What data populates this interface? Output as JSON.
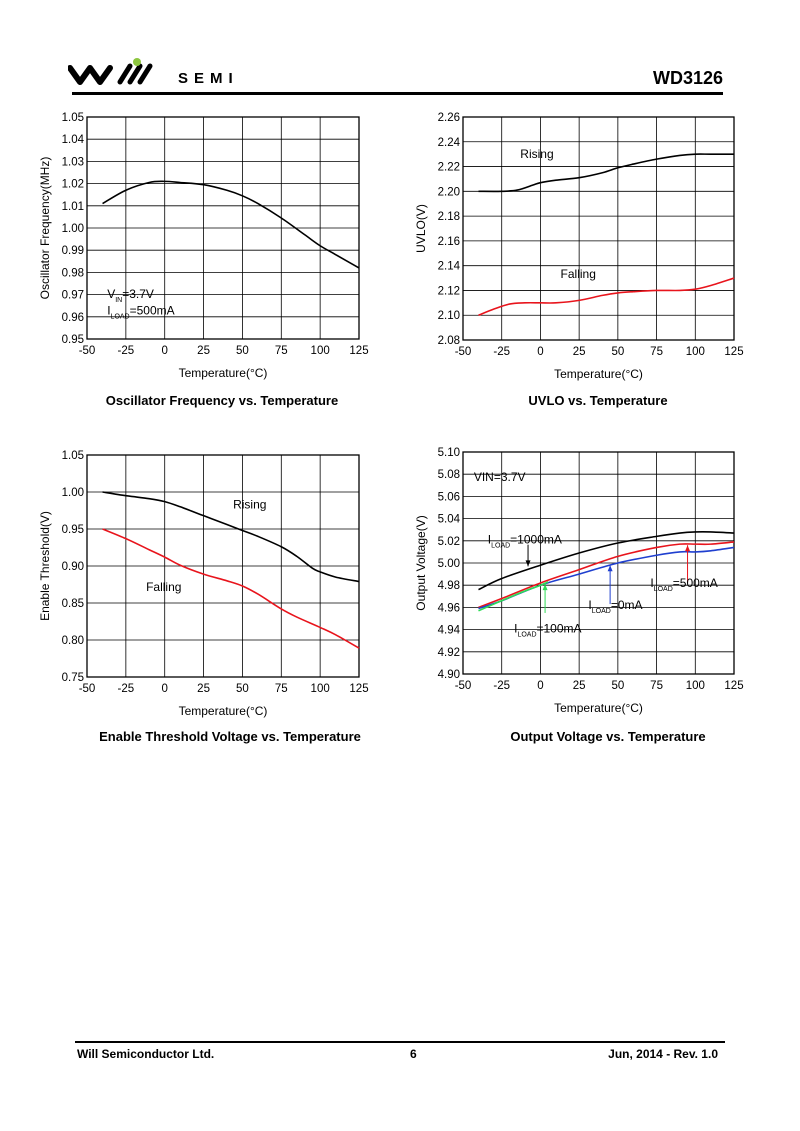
{
  "header": {
    "brand": "SEMI",
    "doc_id": "WD3126",
    "logo_accent": "#8dc63f"
  },
  "captions": {
    "osc": "Oscillator Frequency vs. Temperature",
    "uvlo": "UVLO vs. Temperature",
    "en": "Enable Threshold Voltage vs. Temperature",
    "vout": "Output Voltage vs. Temperature"
  },
  "footer": {
    "company": "Will Semiconductor Ltd.",
    "page": "6",
    "date": "Jun, 2014 - Rev. 1.0"
  },
  "chart_data": [
    {
      "id": "osc",
      "type": "line",
      "title": "",
      "xlabel": "Temperature(°C)",
      "ylabel": "Oscillator Frequency(MHz)",
      "xlim": [
        -50,
        125
      ],
      "ylim": [
        0.95,
        1.05
      ],
      "xticks": [
        -50,
        -25,
        0,
        25,
        50,
        75,
        100,
        125
      ],
      "yticks": [
        0.95,
        0.96,
        0.97,
        0.98,
        0.99,
        1.0,
        1.01,
        1.02,
        1.03,
        1.04,
        1.05
      ],
      "ydecimals": 2,
      "grid": true,
      "series": [
        {
          "name": "",
          "color": "#000000",
          "x": [
            -40,
            -25,
            -10,
            0,
            10,
            25,
            40,
            50,
            60,
            75,
            90,
            100,
            110,
            125
          ],
          "y": [
            1.011,
            1.017,
            1.0205,
            1.021,
            1.0205,
            1.0195,
            1.017,
            1.0145,
            1.011,
            1.0045,
            0.997,
            0.992,
            0.988,
            0.982
          ]
        }
      ],
      "annotations": [
        {
          "label": "V",
          "sub": "IN",
          "rest": "=3.7V",
          "x": -37,
          "y": 0.9685,
          "color": "#000000"
        },
        {
          "label": "I",
          "sub": "LOAD",
          "rest": "=500mA",
          "x": -37,
          "y": 0.961,
          "color": "#000000"
        }
      ]
    },
    {
      "id": "uvlo",
      "type": "line",
      "title": "",
      "xlabel": "Temperature(°C)",
      "ylabel": "UVLO(V)",
      "xlim": [
        -50,
        125
      ],
      "ylim": [
        2.08,
        2.26
      ],
      "xticks": [
        -50,
        -25,
        0,
        25,
        50,
        75,
        100,
        125
      ],
      "yticks": [
        2.08,
        2.1,
        2.12,
        2.14,
        2.16,
        2.18,
        2.2,
        2.22,
        2.24,
        2.26
      ],
      "ydecimals": 2,
      "grid": true,
      "series": [
        {
          "name": "Rising",
          "color": "#000000",
          "x": [
            -40,
            -25,
            -15,
            -5,
            0,
            10,
            25,
            40,
            50,
            60,
            75,
            90,
            100,
            110,
            125
          ],
          "y": [
            2.2,
            2.2,
            2.201,
            2.205,
            2.207,
            2.209,
            2.211,
            2.215,
            2.219,
            2.222,
            2.226,
            2.229,
            2.23,
            2.23,
            2.23
          ]
        },
        {
          "name": "Falling",
          "color": "#e8141c",
          "x": [
            -40,
            -30,
            -20,
            -10,
            0,
            10,
            25,
            40,
            50,
            60,
            75,
            90,
            100,
            110,
            125
          ],
          "y": [
            2.1,
            2.105,
            2.109,
            2.11,
            2.11,
            2.11,
            2.112,
            2.116,
            2.118,
            2.119,
            2.12,
            2.12,
            2.121,
            2.124,
            2.13
          ]
        }
      ],
      "annotations": [
        {
          "label": "Rising",
          "x": -13,
          "y": 2.227,
          "color": "#000000"
        },
        {
          "label": "Falling",
          "x": 13,
          "y": 2.13,
          "color": "#000000"
        }
      ]
    },
    {
      "id": "en",
      "type": "line",
      "title": "",
      "xlabel": "Temperature(°C)",
      "ylabel": "Enable Threshold(V)",
      "xlim": [
        -50,
        125
      ],
      "ylim": [
        0.75,
        1.05
      ],
      "xticks": [
        -50,
        -25,
        0,
        25,
        50,
        75,
        100,
        125
      ],
      "yticks": [
        0.75,
        0.8,
        0.85,
        0.9,
        0.95,
        1.0,
        1.05
      ],
      "ydecimals": 2,
      "grid": true,
      "series": [
        {
          "name": "Rising",
          "color": "#000000",
          "x": [
            -40,
            -25,
            -10,
            0,
            10,
            25,
            40,
            50,
            60,
            75,
            85,
            95,
            100,
            110,
            125
          ],
          "y": [
            1.0,
            0.995,
            0.991,
            0.987,
            0.98,
            0.968,
            0.956,
            0.948,
            0.94,
            0.926,
            0.913,
            0.897,
            0.892,
            0.885,
            0.879
          ]
        },
        {
          "name": "Falling",
          "color": "#e8141c",
          "x": [
            -40,
            -25,
            -10,
            0,
            10,
            25,
            40,
            50,
            60,
            75,
            85,
            100,
            110,
            125
          ],
          "y": [
            0.95,
            0.937,
            0.922,
            0.912,
            0.901,
            0.889,
            0.88,
            0.873,
            0.862,
            0.842,
            0.831,
            0.817,
            0.807,
            0.789
          ]
        }
      ],
      "annotations": [
        {
          "label": "Rising",
          "x": 44,
          "y": 0.9775,
          "color": "#000000"
        },
        {
          "label": "Falling",
          "x": -12,
          "y": 0.8665,
          "color": "#000000"
        }
      ]
    },
    {
      "id": "vout",
      "type": "line",
      "title": "",
      "xlabel": "Temperature(°C)",
      "ylabel": "Output Voltage(V)",
      "xlim": [
        -50,
        125
      ],
      "ylim": [
        4.9,
        5.1
      ],
      "xticks": [
        -50,
        -25,
        0,
        25,
        50,
        75,
        100,
        125
      ],
      "yticks": [
        4.9,
        4.92,
        4.94,
        4.96,
        4.98,
        5.0,
        5.02,
        5.04,
        5.06,
        5.08,
        5.1
      ],
      "ydecimals": 2,
      "grid": true,
      "series": [
        {
          "name": "I_LOAD=1000mA",
          "color": "#000000",
          "x": [
            -40,
            -25,
            0,
            25,
            50,
            75,
            90,
            100,
            110,
            125
          ],
          "y": [
            4.976,
            4.986,
            4.998,
            5.009,
            5.018,
            5.024,
            5.027,
            5.028,
            5.028,
            5.027
          ]
        },
        {
          "name": "I_LOAD=500mA",
          "color": "#e8141c",
          "x": [
            -40,
            -25,
            0,
            25,
            50,
            75,
            90,
            100,
            110,
            125
          ],
          "y": [
            4.96,
            4.968,
            4.982,
            4.994,
            5.006,
            5.014,
            5.017,
            5.017,
            5.017,
            5.019
          ]
        },
        {
          "name": "I_LOAD=0mA",
          "color": "#1f3fcf",
          "x": [
            -40,
            -25,
            0,
            25,
            50,
            75,
            90,
            100,
            110,
            125
          ],
          "y": [
            4.959,
            4.966,
            4.98,
            4.99,
            5.0,
            5.007,
            5.01,
            5.01,
            5.011,
            5.014
          ]
        },
        {
          "name": "I_LOAD=100mA",
          "color": "#2edc55",
          "x": [
            -40,
            -30,
            -15,
            0,
            5
          ],
          "y": [
            4.957,
            4.963,
            4.972,
            4.98,
            4.983
          ]
        }
      ],
      "annotations": [
        {
          "label": "VIN=3.7V",
          "x": -43,
          "y": 5.074,
          "color": "#000000"
        },
        {
          "label": "I",
          "sub": "LOAD",
          "rest": "=1000mA",
          "x": -34,
          "y": 5.0175,
          "color": "#000000"
        },
        {
          "label": "I",
          "sub": "LOAD",
          "rest": "=500mA",
          "x": 71,
          "y": 4.9785,
          "color": "#000000"
        },
        {
          "label": "I",
          "sub": "LOAD",
          "rest": "=0mA",
          "x": 31,
          "y": 4.9585,
          "color": "#000000"
        },
        {
          "label": "I",
          "sub": "LOAD",
          "rest": "=100mA",
          "x": -17,
          "y": 4.9375,
          "color": "#000000"
        }
      ],
      "arrows": [
        {
          "x": -8,
          "y1": 5.0165,
          "y2": 4.997,
          "color": "#000000"
        },
        {
          "x": 3,
          "y1": 4.955,
          "y2": 4.981,
          "color": "#2edc55"
        },
        {
          "x": 45,
          "y1": 4.963,
          "y2": 4.998,
          "color": "#1f3fcf"
        },
        {
          "x": 95,
          "y1": 4.982,
          "y2": 5.016,
          "color": "#e8141c"
        }
      ]
    }
  ]
}
